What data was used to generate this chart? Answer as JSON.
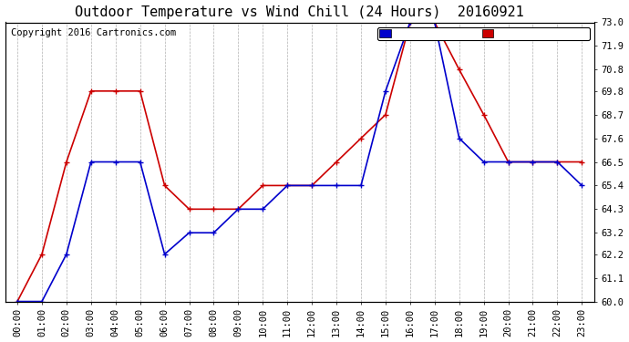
{
  "title": "Outdoor Temperature vs Wind Chill (24 Hours)  20160921",
  "copyright": "Copyright 2016 Cartronics.com",
  "background_color": "#ffffff",
  "plot_bg_color": "#ffffff",
  "grid_color": "#b0b0b0",
  "x_labels": [
    "00:00",
    "01:00",
    "02:00",
    "03:00",
    "04:00",
    "05:00",
    "06:00",
    "07:00",
    "08:00",
    "09:00",
    "10:00",
    "11:00",
    "12:00",
    "13:00",
    "14:00",
    "15:00",
    "16:00",
    "17:00",
    "18:00",
    "19:00",
    "20:00",
    "21:00",
    "22:00",
    "23:00"
  ],
  "ylim": [
    60.0,
    73.0
  ],
  "yticks": [
    60.0,
    61.1,
    62.2,
    63.2,
    64.3,
    65.4,
    66.5,
    67.6,
    68.7,
    69.8,
    70.8,
    71.9,
    73.0
  ],
  "temperature": [
    60.0,
    62.2,
    66.5,
    69.8,
    69.8,
    69.8,
    65.4,
    64.3,
    64.3,
    64.3,
    65.4,
    65.4,
    65.4,
    66.5,
    67.6,
    68.7,
    73.0,
    73.0,
    70.8,
    68.7,
    66.5,
    66.5,
    66.5,
    66.5
  ],
  "wind_chill": [
    60.0,
    60.0,
    62.2,
    66.5,
    66.5,
    66.5,
    62.2,
    63.2,
    63.2,
    64.3,
    64.3,
    65.4,
    65.4,
    65.4,
    65.4,
    69.8,
    73.0,
    73.0,
    67.6,
    66.5,
    66.5,
    66.5,
    66.5,
    65.4
  ],
  "temp_color": "#cc0000",
  "wind_color": "#0000cc",
  "legend_wind_bg": "#0000cc",
  "legend_temp_bg": "#cc0000",
  "marker": "+",
  "marker_size": 5,
  "line_width": 1.2,
  "title_fontsize": 11,
  "tick_fontsize": 7.5,
  "copyright_fontsize": 7.5,
  "legend_fontsize": 7.5
}
